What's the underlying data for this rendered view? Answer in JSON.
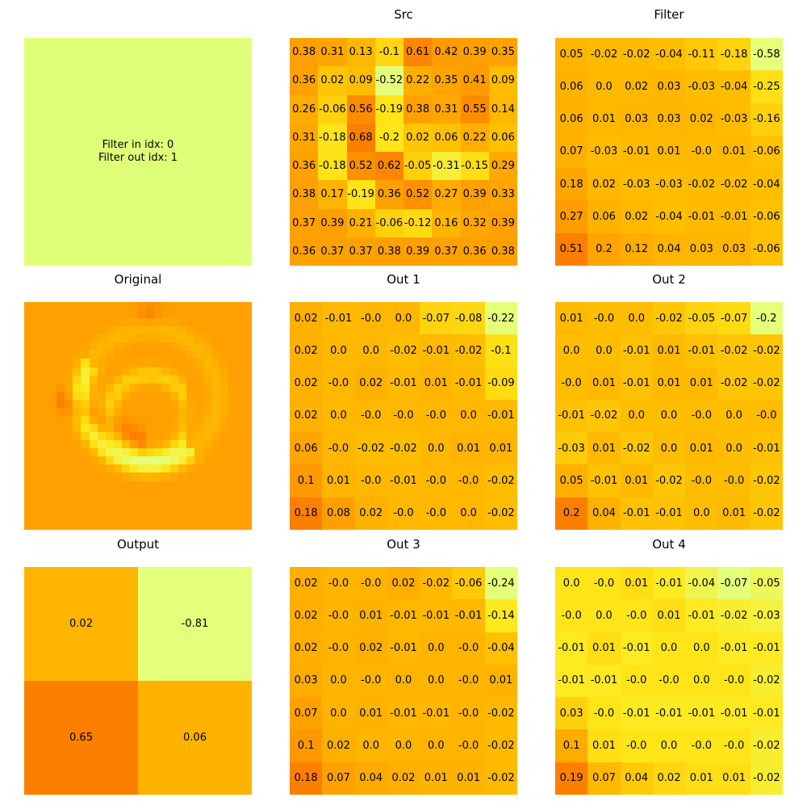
{
  "info_box": {
    "line1": "Filter in idx: 0",
    "line2": "Filter out idx: 1",
    "color": "#e0ff79"
  },
  "colormap": {
    "name": "Wistia",
    "stops": [
      "#e4ff7a",
      "#ffe81a",
      "#ffbd00",
      "#ffa000",
      "#fc7f00"
    ]
  },
  "chart_data": [
    {
      "type": "heatmap",
      "id": "src",
      "title": "Src",
      "rows": 8,
      "cols": 8,
      "show_values": true,
      "values": [
        [
          0.38,
          0.31,
          0.13,
          -0.1,
          0.61,
          0.42,
          0.39,
          0.35
        ],
        [
          0.36,
          0.02,
          0.09,
          -0.52,
          0.22,
          0.35,
          0.41,
          0.09
        ],
        [
          0.26,
          -0.06,
          0.56,
          -0.19,
          0.38,
          0.31,
          0.55,
          0.14
        ],
        [
          0.31,
          -0.18,
          0.68,
          -0.2,
          0.02,
          0.06,
          0.22,
          0.06
        ],
        [
          0.36,
          -0.18,
          0.52,
          0.62,
          -0.05,
          -0.31,
          -0.15,
          0.29
        ],
        [
          0.38,
          0.17,
          -0.19,
          0.36,
          0.52,
          0.27,
          0.39,
          0.33
        ],
        [
          0.37,
          0.39,
          0.21,
          -0.06,
          -0.12,
          0.16,
          0.32,
          0.39
        ],
        [
          0.36,
          0.37,
          0.37,
          0.38,
          0.39,
          0.37,
          0.36,
          0.38
        ]
      ]
    },
    {
      "type": "heatmap",
      "id": "filter",
      "title": "Filter",
      "rows": 7,
      "cols": 7,
      "show_values": true,
      "values": [
        [
          0.05,
          -0.02,
          -0.02,
          -0.04,
          -0.11,
          -0.18,
          -0.58
        ],
        [
          0.06,
          0.0,
          0.02,
          0.03,
          -0.03,
          -0.04,
          -0.25
        ],
        [
          0.06,
          0.01,
          0.03,
          0.03,
          0.02,
          -0.03,
          -0.16
        ],
        [
          0.07,
          -0.03,
          -0.01,
          0.01,
          -0.0,
          0.01,
          -0.06
        ],
        [
          0.18,
          0.02,
          -0.03,
          -0.03,
          -0.02,
          -0.02,
          -0.04
        ],
        [
          0.27,
          0.06,
          0.02,
          -0.04,
          -0.01,
          -0.01,
          -0.06
        ],
        [
          0.51,
          0.2,
          0.12,
          0.04,
          0.03,
          0.03,
          -0.06
        ]
      ]
    },
    {
      "type": "heatmap",
      "id": "original",
      "title": "Original",
      "rows": 28,
      "cols": 28,
      "show_values": false,
      "description_values": "image"
    },
    {
      "type": "heatmap",
      "id": "out1",
      "title": "Out 1",
      "rows": 7,
      "cols": 7,
      "show_values": true,
      "values": [
        [
          0.02,
          -0.01,
          -0.0,
          0.0,
          -0.07,
          -0.08,
          -0.22
        ],
        [
          0.02,
          0.0,
          0.0,
          -0.02,
          -0.01,
          -0.02,
          -0.1
        ],
        [
          0.02,
          -0.0,
          0.02,
          -0.01,
          0.01,
          -0.01,
          -0.09
        ],
        [
          0.02,
          0.0,
          -0.0,
          -0.0,
          -0.0,
          0.0,
          -0.01
        ],
        [
          0.06,
          -0.0,
          -0.02,
          -0.02,
          0.0,
          0.01,
          0.01
        ],
        [
          0.1,
          0.01,
          -0.0,
          -0.01,
          -0.0,
          -0.0,
          -0.02
        ],
        [
          0.18,
          0.08,
          0.02,
          -0.0,
          -0.0,
          0.0,
          -0.02
        ]
      ]
    },
    {
      "type": "heatmap",
      "id": "out2",
      "title": "Out 2",
      "rows": 7,
      "cols": 7,
      "show_values": true,
      "values": [
        [
          0.01,
          -0.0,
          0.0,
          -0.02,
          -0.05,
          -0.07,
          -0.2
        ],
        [
          0.0,
          0.0,
          -0.01,
          0.01,
          -0.01,
          -0.02,
          -0.02
        ],
        [
          -0.0,
          0.01,
          -0.01,
          0.01,
          0.01,
          -0.02,
          -0.02
        ],
        [
          -0.01,
          -0.02,
          0.0,
          0.0,
          -0.0,
          0.0,
          -0.0
        ],
        [
          -0.03,
          0.01,
          -0.02,
          0.0,
          0.01,
          0.0,
          -0.01
        ],
        [
          0.05,
          -0.01,
          0.01,
          -0.02,
          -0.0,
          -0.0,
          -0.02
        ],
        [
          0.2,
          0.04,
          -0.01,
          -0.01,
          0.0,
          0.01,
          -0.02
        ]
      ]
    },
    {
      "type": "heatmap",
      "id": "output",
      "title": "Output",
      "rows": 2,
      "cols": 2,
      "show_values": true,
      "values": [
        [
          0.02,
          -0.81
        ],
        [
          0.65,
          0.06
        ]
      ]
    },
    {
      "type": "heatmap",
      "id": "out3",
      "title": "Out 3",
      "rows": 7,
      "cols": 7,
      "show_values": true,
      "values": [
        [
          0.02,
          -0.0,
          -0.0,
          0.02,
          -0.02,
          -0.06,
          -0.24
        ],
        [
          0.02,
          -0.0,
          0.01,
          -0.01,
          -0.01,
          -0.01,
          -0.14
        ],
        [
          0.02,
          -0.0,
          0.02,
          -0.01,
          0.0,
          -0.0,
          -0.04
        ],
        [
          0.03,
          0.0,
          -0.0,
          0.0,
          0.0,
          -0.0,
          0.01
        ],
        [
          0.07,
          0.0,
          0.01,
          -0.01,
          -0.01,
          -0.0,
          -0.02
        ],
        [
          0.1,
          0.02,
          0.0,
          0.0,
          0.0,
          -0.0,
          -0.02
        ],
        [
          0.18,
          0.07,
          0.04,
          0.02,
          0.01,
          0.01,
          -0.02
        ]
      ]
    },
    {
      "type": "heatmap",
      "id": "out4",
      "title": "Out 4",
      "rows": 7,
      "cols": 7,
      "show_values": true,
      "values": [
        [
          0.0,
          -0.0,
          0.01,
          -0.01,
          -0.04,
          -0.07,
          -0.05
        ],
        [
          -0.0,
          0.0,
          -0.0,
          0.01,
          -0.01,
          -0.02,
          -0.03
        ],
        [
          -0.01,
          0.01,
          -0.01,
          0.0,
          0.0,
          -0.01,
          -0.01
        ],
        [
          -0.01,
          -0.01,
          -0.0,
          -0.0,
          0.0,
          -0.0,
          -0.02
        ],
        [
          0.03,
          -0.0,
          -0.01,
          -0.01,
          -0.01,
          -0.01,
          -0.01
        ],
        [
          0.1,
          0.01,
          -0.0,
          0.0,
          -0.0,
          -0.0,
          -0.02
        ],
        [
          0.19,
          0.07,
          0.04,
          0.02,
          0.01,
          0.01,
          -0.02
        ]
      ]
    }
  ]
}
